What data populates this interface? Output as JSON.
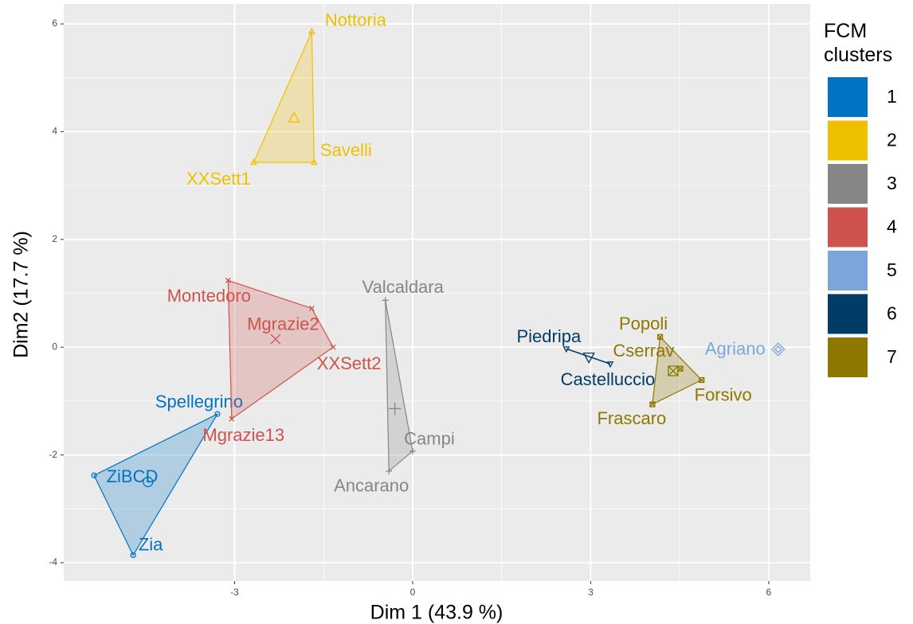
{
  "chart_data": {
    "type": "scatter",
    "x_label": "Dim 1 (43.9 %)",
    "y_label": "Dim2 (17.7 %)",
    "legend_title": "FCM clusters",
    "legend_position": "right",
    "grid": true,
    "xlim": [
      -5.88,
      6.7
    ],
    "ylim": [
      -4.34,
      6.37
    ],
    "xticks": [
      -3,
      0,
      3,
      6
    ],
    "yticks": [
      -4,
      -2,
      0,
      2,
      4,
      6
    ],
    "series": [
      {
        "name": "1",
        "color": "#0073C2",
        "shape": "circle",
        "points": [
          {
            "label": "Spellegrino",
            "x": -3.29,
            "y": -1.24
          },
          {
            "label": "ZiBCD",
            "x": -5.37,
            "y": -2.38
          },
          {
            "label": "Zia",
            "x": -4.71,
            "y": -3.86
          }
        ],
        "centroid": {
          "x": -4.46,
          "y": -2.5
        }
      },
      {
        "name": "2",
        "color": "#EFC000",
        "shape": "triangle",
        "points": [
          {
            "label": "Nottoria",
            "x": -1.7,
            "y": 5.86
          },
          {
            "label": "Savelli",
            "x": -1.66,
            "y": 3.43
          },
          {
            "label": "XXSett1",
            "x": -2.68,
            "y": 3.43
          }
        ],
        "centroid": {
          "x": -2.0,
          "y": 4.25
        }
      },
      {
        "name": "3",
        "color": "#868686",
        "shape": "plus",
        "points": [
          {
            "label": "Valcaldara",
            "x": -0.46,
            "y": 0.87
          },
          {
            "label": "Campi",
            "x": 0.0,
            "y": -1.93
          },
          {
            "label": "Ancarano",
            "x": -0.4,
            "y": -2.3
          }
        ],
        "centroid": {
          "x": -0.3,
          "y": -1.14
        }
      },
      {
        "name": "4",
        "color": "#CD534C",
        "shape": "cross",
        "points": [
          {
            "label": "Montedoro",
            "x": -3.11,
            "y": 1.24
          },
          {
            "label": "Mgrazie2",
            "x": -1.7,
            "y": 0.72
          },
          {
            "label": "XXSett2",
            "x": -1.34,
            "y": 0.0
          },
          {
            "label": "Mgrazie13",
            "x": -3.05,
            "y": -1.33
          }
        ],
        "centroid": {
          "x": -2.31,
          "y": 0.15
        }
      },
      {
        "name": "5",
        "color": "#7AA6DC",
        "shape": "diamond",
        "points": [
          {
            "label": "Agriano",
            "x": 6.16,
            "y": -0.04
          }
        ],
        "centroid": {
          "x": 6.16,
          "y": -0.04
        }
      },
      {
        "name": "6",
        "color": "#003C67",
        "shape": "triangle-down",
        "points": [
          {
            "label": "Piedripa",
            "x": 2.59,
            "y": -0.03
          },
          {
            "label": "Castelluccio",
            "x": 3.33,
            "y": -0.31
          }
        ],
        "centroid": {
          "x": 2.97,
          "y": -0.18
        }
      },
      {
        "name": "7",
        "color": "#8F7700",
        "shape": "square-cross",
        "points": [
          {
            "label": "Popoli",
            "x": 4.17,
            "y": 0.19
          },
          {
            "label": "Cserrav",
            "x": 4.51,
            "y": -0.4
          },
          {
            "label": "Forsivo",
            "x": 4.87,
            "y": -0.61
          },
          {
            "label": "Frascaro",
            "x": 4.04,
            "y": -1.06
          }
        ],
        "centroid": {
          "x": 4.39,
          "y": -0.44
        }
      }
    ]
  }
}
